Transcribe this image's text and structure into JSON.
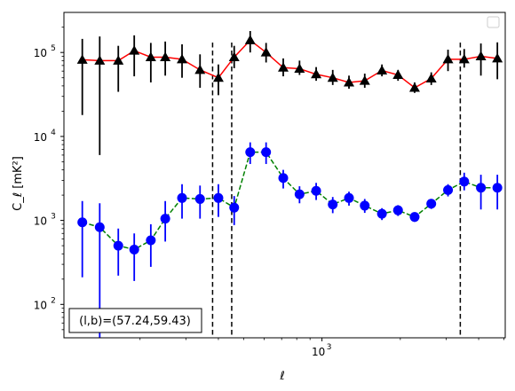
{
  "chart_data": {
    "type": "scatter",
    "xscale": "log",
    "yscale": "log",
    "xlim": [
      102,
      5060
    ],
    "ylim": [
      40,
      300000
    ],
    "xlabel": "ℓ",
    "ylabel": "C_ℓ  [mK²]",
    "xticks": [
      {
        "value": 1000,
        "label": "10",
        "exp": "3"
      }
    ],
    "yticks": [
      {
        "value": 100,
        "label": "10",
        "exp": "2"
      },
      {
        "value": 1000,
        "label": "10",
        "exp": "3"
      },
      {
        "value": 10000,
        "label": "10",
        "exp": "4"
      },
      {
        "value": 100000,
        "label": "10",
        "exp": "5"
      }
    ],
    "legend": {
      "placement": "top-right",
      "entries": []
    },
    "annotation": "(l,b)=(57.24,59.43)",
    "vlines": [
      380,
      450,
      3400
    ],
    "series": [
      {
        "color": "#ff0000",
        "marker_color": "#000000",
        "marker": "triangle",
        "linestyle": "solid",
        "x": [
          120,
          140,
          165,
          190,
          220,
          250,
          290,
          340,
          400,
          460,
          530,
          610,
          710,
          820,
          950,
          1100,
          1270,
          1460,
          1700,
          1960,
          2270,
          2630,
          3050,
          3520,
          4080,
          4720
        ],
        "y": [
          82000,
          80000,
          80000,
          105000,
          88000,
          88000,
          83000,
          62000,
          50000,
          88000,
          140000,
          100000,
          66000,
          64000,
          55000,
          50000,
          44000,
          46000,
          61000,
          54000,
          38000,
          49000,
          83000,
          83000,
          90000,
          85000
        ],
        "yerr_low": [
          18000,
          6000,
          34000,
          52000,
          44000,
          53000,
          50000,
          38000,
          31000,
          65000,
          100000,
          76000,
          52000,
          54000,
          46000,
          41000,
          37000,
          38000,
          52000,
          46000,
          33000,
          41000,
          60000,
          66000,
          53000,
          48000
        ],
        "yerr_high": [
          145000,
          155000,
          120000,
          160000,
          130000,
          135000,
          125000,
          95000,
          72000,
          120000,
          180000,
          130000,
          85000,
          80000,
          67000,
          62000,
          53000,
          56000,
          72000,
          62000,
          44000,
          58000,
          108000,
          110000,
          128000,
          132000
        ]
      },
      {
        "color": "#008000",
        "marker_color": "#0000ff",
        "marker": "circle",
        "linestyle": "dashed",
        "x": [
          120,
          140,
          165,
          190,
          220,
          250,
          290,
          340,
          400,
          460,
          530,
          610,
          710,
          820,
          950,
          1100,
          1270,
          1460,
          1700,
          1960,
          2270,
          2630,
          3050,
          3520,
          4080,
          4720
        ],
        "y": [
          950,
          830,
          500,
          450,
          580,
          1050,
          1850,
          1800,
          1850,
          1420,
          6500,
          6500,
          3200,
          2050,
          2250,
          1550,
          1850,
          1500,
          1200,
          1320,
          1100,
          1580,
          2300,
          2900,
          2450,
          2450
        ],
        "yerr_low": [
          210,
          40,
          220,
          190,
          280,
          560,
          1050,
          1050,
          1100,
          880,
          4700,
          4700,
          2400,
          1600,
          1750,
          1220,
          1500,
          1230,
          1010,
          1130,
          960,
          1370,
          1930,
          2280,
          1350,
          1350
        ],
        "yerr_high": [
          1700,
          1600,
          800,
          700,
          900,
          1700,
          2700,
          2600,
          2700,
          1950,
          8500,
          8500,
          4000,
          2550,
          2800,
          1900,
          2200,
          1800,
          1400,
          1520,
          1250,
          1800,
          2700,
          3700,
          3500,
          3500
        ]
      }
    ]
  }
}
